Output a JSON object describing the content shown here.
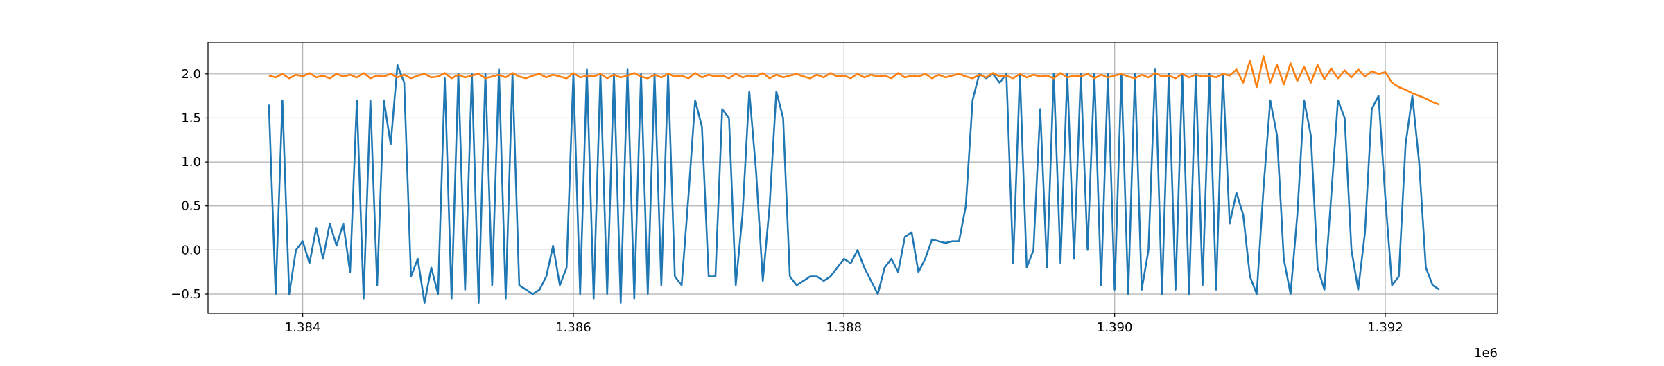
{
  "chart_data": {
    "type": "line",
    "x_offset_text": "1e6",
    "grid": true,
    "xlim": [
      1383300,
      1392830
    ],
    "ylim": [
      -0.72,
      2.36
    ],
    "xticks": [
      {
        "value": 1384000,
        "label": "1.384"
      },
      {
        "value": 1386000,
        "label": "1.386"
      },
      {
        "value": 1388000,
        "label": "1.388"
      },
      {
        "value": 1390000,
        "label": "1.390"
      },
      {
        "value": 1392000,
        "label": "1.392"
      }
    ],
    "yticks": [
      {
        "value": -0.5,
        "label": "−0.5"
      },
      {
        "value": 0,
        "label": "0.0"
      },
      {
        "value": 0.5,
        "label": "0.5"
      },
      {
        "value": 1,
        "label": "1.0"
      },
      {
        "value": 1.5,
        "label": "1.5"
      },
      {
        "value": 2,
        "label": "2.0"
      }
    ],
    "x": [
      1383750,
      1383800,
      1383850,
      1383900,
      1383950,
      1384000,
      1384050,
      1384100,
      1384150,
      1384200,
      1384250,
      1384300,
      1384350,
      1384400,
      1384450,
      1384500,
      1384550,
      1384600,
      1384650,
      1384700,
      1384750,
      1384800,
      1384850,
      1384900,
      1384950,
      1385000,
      1385050,
      1385100,
      1385150,
      1385200,
      1385250,
      1385300,
      1385350,
      1385400,
      1385450,
      1385500,
      1385550,
      1385600,
      1385650,
      1385700,
      1385750,
      1385800,
      1385850,
      1385900,
      1385950,
      1386000,
      1386050,
      1386100,
      1386150,
      1386200,
      1386250,
      1386300,
      1386350,
      1386400,
      1386450,
      1386500,
      1386550,
      1386600,
      1386650,
      1386700,
      1386750,
      1386800,
      1386850,
      1386900,
      1386950,
      1387000,
      1387050,
      1387100,
      1387150,
      1387200,
      1387250,
      1387300,
      1387350,
      1387400,
      1387450,
      1387500,
      1387550,
      1387600,
      1387650,
      1387700,
      1387750,
      1387800,
      1387850,
      1387900,
      1387950,
      1388000,
      1388050,
      1388100,
      1388150,
      1388200,
      1388250,
      1388300,
      1388350,
      1388400,
      1388450,
      1388500,
      1388550,
      1388600,
      1388650,
      1388700,
      1388750,
      1388800,
      1388850,
      1388900,
      1388950,
      1389000,
      1389050,
      1389100,
      1389150,
      1389200,
      1389250,
      1389300,
      1389350,
      1389400,
      1389450,
      1389500,
      1389550,
      1389600,
      1389650,
      1389700,
      1389750,
      1389800,
      1389850,
      1389900,
      1389950,
      1390000,
      1390050,
      1390100,
      1390150,
      1390200,
      1390250,
      1390300,
      1390350,
      1390400,
      1390450,
      1390500,
      1390550,
      1390600,
      1390650,
      1390700,
      1390750,
      1390800,
      1390850,
      1390900,
      1390950,
      1391000,
      1391050,
      1391100,
      1391150,
      1391200,
      1391250,
      1391300,
      1391350,
      1391400,
      1391450,
      1391500,
      1391550,
      1391600,
      1391650,
      1391700,
      1391750,
      1391800,
      1391850,
      1391900,
      1391950,
      1392000,
      1392050,
      1392100,
      1392150,
      1392200,
      1392250,
      1392300,
      1392350,
      1392400
    ],
    "series": [
      {
        "color": "#1f77b4",
        "values": [
          1.65,
          -0.5,
          1.7,
          -0.5,
          0.0,
          0.1,
          -0.15,
          0.25,
          -0.1,
          0.3,
          0.05,
          0.3,
          -0.25,
          1.7,
          -0.55,
          1.7,
          -0.4,
          1.7,
          1.2,
          2.1,
          1.9,
          -0.3,
          -0.1,
          -0.6,
          -0.2,
          -0.5,
          1.95,
          -0.55,
          2.0,
          -0.45,
          2.0,
          -0.6,
          2.0,
          -0.4,
          2.05,
          -0.55,
          2.0,
          -0.4,
          -0.45,
          -0.5,
          -0.45,
          -0.3,
          0.05,
          -0.4,
          -0.2,
          2.0,
          -0.5,
          2.05,
          -0.55,
          2.0,
          -0.5,
          2.0,
          -0.6,
          2.05,
          -0.55,
          2.0,
          -0.5,
          2.0,
          -0.4,
          2.0,
          -0.3,
          -0.4,
          0.6,
          1.7,
          1.4,
          -0.3,
          -0.3,
          1.6,
          1.5,
          -0.4,
          0.4,
          1.8,
          0.9,
          -0.35,
          0.5,
          1.8,
          1.5,
          -0.3,
          -0.4,
          -0.35,
          -0.3,
          -0.3,
          -0.35,
          -0.3,
          -0.2,
          -0.1,
          -0.15,
          0.0,
          -0.2,
          -0.35,
          -0.5,
          -0.2,
          -0.1,
          -0.25,
          0.15,
          0.2,
          -0.25,
          -0.1,
          0.12,
          0.1,
          0.08,
          0.1,
          0.1,
          0.5,
          1.7,
          2.0,
          1.95,
          2.0,
          1.9,
          2.0,
          -0.15,
          2.0,
          -0.2,
          0.0,
          1.6,
          -0.2,
          2.0,
          -0.15,
          2.0,
          -0.1,
          2.0,
          0.0,
          2.0,
          -0.4,
          2.0,
          -0.45,
          2.0,
          -0.5,
          2.0,
          -0.45,
          0.0,
          2.05,
          -0.5,
          2.0,
          -0.45,
          2.0,
          -0.5,
          2.0,
          -0.4,
          2.0,
          -0.45,
          2.0,
          0.3,
          0.65,
          0.4,
          -0.3,
          -0.5,
          0.7,
          1.7,
          1.3,
          -0.1,
          -0.5,
          0.4,
          1.7,
          1.3,
          -0.2,
          -0.45,
          0.6,
          1.7,
          1.5,
          0.0,
          -0.45,
          0.2,
          1.6,
          1.75,
          0.6,
          -0.4,
          -0.3,
          1.2,
          1.75,
          1.0,
          -0.2,
          -0.4,
          -0.45
        ]
      },
      {
        "color": "#ff7f0e",
        "values": [
          1.98,
          1.96,
          2.0,
          1.95,
          1.99,
          1.97,
          2.01,
          1.96,
          1.98,
          1.95,
          2.0,
          1.97,
          1.99,
          1.96,
          2.01,
          1.95,
          1.98,
          1.97,
          2.0,
          1.96,
          1.99,
          1.95,
          1.98,
          2.0,
          1.96,
          1.97,
          2.01,
          1.95,
          1.99,
          1.96,
          1.98,
          2.0,
          1.95,
          1.97,
          1.99,
          1.96,
          2.01,
          1.97,
          1.95,
          1.98,
          2.0,
          1.96,
          1.99,
          1.97,
          1.95,
          2.01,
          1.96,
          1.98,
          1.97,
          2.0,
          1.95,
          1.99,
          1.96,
          1.98,
          2.01,
          1.97,
          1.95,
          1.99,
          1.96,
          2.0,
          1.97,
          1.98,
          1.95,
          2.01,
          1.96,
          1.99,
          1.97,
          1.98,
          1.95,
          2.0,
          1.96,
          1.98,
          1.97,
          2.01,
          1.95,
          1.99,
          1.96,
          1.98,
          2.0,
          1.97,
          1.95,
          1.99,
          1.96,
          2.01,
          1.97,
          1.98,
          1.95,
          2.0,
          1.96,
          1.99,
          1.97,
          1.98,
          1.95,
          2.01,
          1.96,
          1.98,
          1.97,
          2.0,
          1.95,
          1.99,
          1.96,
          1.98,
          2.0,
          1.97,
          1.95,
          1.99,
          1.96,
          2.01,
          1.97,
          1.98,
          1.95,
          2.0,
          1.96,
          1.99,
          1.97,
          1.98,
          1.95,
          2.01,
          1.96,
          1.98,
          1.97,
          2.0,
          1.95,
          1.99,
          1.96,
          1.98,
          2.0,
          1.97,
          1.95,
          1.99,
          1.96,
          2.01,
          1.97,
          1.98,
          1.95,
          2.0,
          1.96,
          1.99,
          1.97,
          1.98,
          1.96,
          2.0,
          1.98,
          2.05,
          1.9,
          2.15,
          1.85,
          2.2,
          1.9,
          2.1,
          1.88,
          2.12,
          1.92,
          2.08,
          1.9,
          2.1,
          1.94,
          2.06,
          1.95,
          2.04,
          1.96,
          2.05,
          1.97,
          2.03,
          2.0,
          2.02,
          1.9,
          1.85,
          1.82,
          1.78,
          1.75,
          1.72,
          1.68,
          1.65
        ]
      }
    ]
  }
}
